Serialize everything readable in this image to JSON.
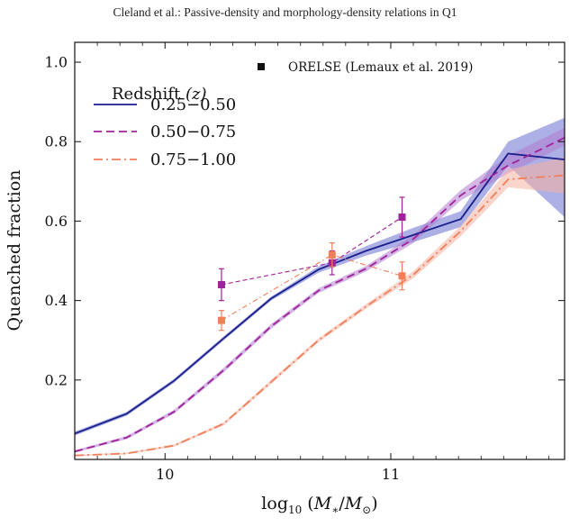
{
  "header": {
    "text": "Cleland et al.: Passive-density and morphology-density relations in Q1"
  },
  "colors": {
    "series1": "#1a1f8c",
    "series2": "#a0229a",
    "series3": "#f07f5a",
    "band1": "#6a6fcf",
    "band2": "#b07cd0",
    "band3": "#f6b3a0"
  },
  "chart_data": {
    "type": "line",
    "xlabel": "log10 (M*/M⊙)",
    "ylabel": "Quenched fraction",
    "xlim": [
      9.6,
      11.77
    ],
    "ylim": [
      0.0,
      1.05
    ],
    "xticks": [
      10,
      11
    ],
    "xtick_labels": [
      "10",
      "11"
    ],
    "yticks": [
      0.2,
      0.4,
      0.6,
      0.8,
      1.0
    ],
    "ytick_labels": [
      "0.2",
      "0.4",
      "0.6",
      "0.8",
      "1.0"
    ],
    "legend": {
      "title": "Redshift",
      "title_var": "(z)",
      "position": "top-left",
      "obs_label": "ORELSE (Lemaux et al. 2019)",
      "obs_position": "top-right"
    },
    "series": [
      {
        "name": "0.25−0.50",
        "style": "solid",
        "x": [
          9.6,
          9.83,
          10.04,
          10.26,
          10.47,
          10.68,
          10.89,
          11.1,
          11.31,
          11.52,
          11.77
        ],
        "y": [
          0.065,
          0.115,
          0.198,
          0.305,
          0.405,
          0.478,
          0.525,
          0.565,
          0.605,
          0.77,
          0.755
        ],
        "band": [
          [
            0.06,
            0.07
          ],
          [
            0.11,
            0.12
          ],
          [
            0.193,
            0.203
          ],
          [
            0.3,
            0.31
          ],
          [
            0.4,
            0.41
          ],
          [
            0.47,
            0.486
          ],
          [
            0.513,
            0.537
          ],
          [
            0.547,
            0.583
          ],
          [
            0.585,
            0.625
          ],
          [
            0.74,
            0.8
          ],
          [
            0.61,
            0.86
          ]
        ]
      },
      {
        "name": "0.50−0.75",
        "style": "dashed",
        "x": [
          9.6,
          9.83,
          10.04,
          10.26,
          10.47,
          10.68,
          10.89,
          11.1,
          11.31,
          11.52,
          11.77
        ],
        "y": [
          0.02,
          0.055,
          0.12,
          0.225,
          0.335,
          0.425,
          0.48,
          0.555,
          0.665,
          0.74,
          0.81
        ],
        "band": [
          [
            0.017,
            0.023
          ],
          [
            0.051,
            0.059
          ],
          [
            0.115,
            0.125
          ],
          [
            0.219,
            0.231
          ],
          [
            0.329,
            0.341
          ],
          [
            0.419,
            0.431
          ],
          [
            0.473,
            0.487
          ],
          [
            0.545,
            0.565
          ],
          [
            0.652,
            0.678
          ],
          [
            0.72,
            0.765
          ],
          [
            0.79,
            0.835
          ]
        ]
      },
      {
        "name": "0.75−1.00",
        "style": "dashdot",
        "x": [
          9.6,
          9.83,
          10.04,
          10.26,
          10.47,
          10.68,
          10.89,
          11.1,
          11.31,
          11.52,
          11.77
        ],
        "y": [
          0.01,
          0.015,
          0.035,
          0.09,
          0.195,
          0.3,
          0.385,
          0.465,
          0.575,
          0.705,
          0.715
        ],
        "band": [
          [
            0.008,
            0.012
          ],
          [
            0.013,
            0.017
          ],
          [
            0.032,
            0.038
          ],
          [
            0.086,
            0.094
          ],
          [
            0.19,
            0.2
          ],
          [
            0.295,
            0.305
          ],
          [
            0.379,
            0.391
          ],
          [
            0.456,
            0.474
          ],
          [
            0.562,
            0.588
          ],
          [
            0.685,
            0.73
          ],
          [
            0.67,
            0.76
          ]
        ]
      }
    ],
    "observations": [
      {
        "series_index": 1,
        "x": [
          10.25,
          10.74,
          11.05
        ],
        "y": [
          0.44,
          0.495,
          0.61
        ],
        "err": [
          0.04,
          0.03,
          0.05
        ]
      },
      {
        "series_index": 2,
        "x": [
          10.25,
          10.74,
          11.05
        ],
        "y": [
          0.35,
          0.515,
          0.462
        ],
        "err": [
          0.025,
          0.03,
          0.035
        ]
      }
    ]
  }
}
